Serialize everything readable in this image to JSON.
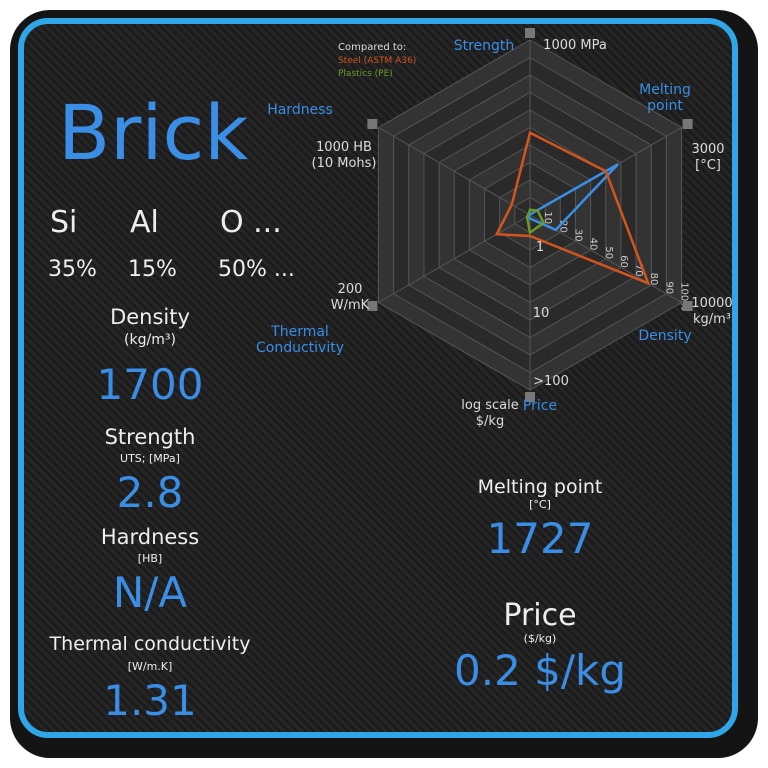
{
  "title": "Brick",
  "composition": [
    {
      "symbol": "Si",
      "fraction": "35%"
    },
    {
      "symbol": "Al",
      "fraction": "15%"
    },
    {
      "symbol": "O ...",
      "fraction": "50% ..."
    }
  ],
  "properties_left": [
    {
      "name": "Density",
      "unit": "(kg/m³)",
      "value": "1700"
    },
    {
      "name": "Strength",
      "unit": "UTS; [MPa]",
      "value": "2.8"
    },
    {
      "name": "Hardness",
      "unit": "[HB]",
      "value": "N/A"
    },
    {
      "name": "Thermal conductivity",
      "unit": "[W/m.K]",
      "value": "1.31"
    }
  ],
  "properties_right": [
    {
      "name": "Melting point",
      "unit": "[°C]",
      "value": "1727"
    },
    {
      "name": "Price",
      "unit": "($/kg)",
      "value": "0.2 $/kg"
    }
  ],
  "chart_data": {
    "type": "radar",
    "legend_title": "Compared to:",
    "categories": [
      "Strength",
      "Melting point",
      "Density",
      "Price",
      "Thermal Conductivity",
      "Hardness"
    ],
    "axis_max_labels": [
      "1000 MPa",
      "3000 [°C]",
      "10000 kg/m³",
      ">100",
      "200 W/mK",
      "1000 HB (10 Mohs)"
    ],
    "price_scale_label": "log scale $/kg",
    "price_ticks": [
      "10",
      "1"
    ],
    "rlim": [
      0,
      100
    ],
    "rticks": [
      10,
      20,
      30,
      40,
      50,
      60,
      70,
      80,
      90,
      {
        "value": 100,
        "label": "100%"
      }
    ],
    "series": [
      {
        "color": "#3a8ee6",
        "values": [
          0.3,
          58,
          17,
          2,
          1,
          0
        ]
      },
      {
        "name": "Steel (ASTM A36)",
        "color": "#d2541e",
        "values": [
          47,
          50,
          78,
          12,
          22,
          12
        ]
      },
      {
        "name": "Plastics (PE)",
        "color": "#6a9a2a",
        "values": [
          3,
          5,
          9,
          10,
          2,
          1
        ]
      }
    ]
  }
}
